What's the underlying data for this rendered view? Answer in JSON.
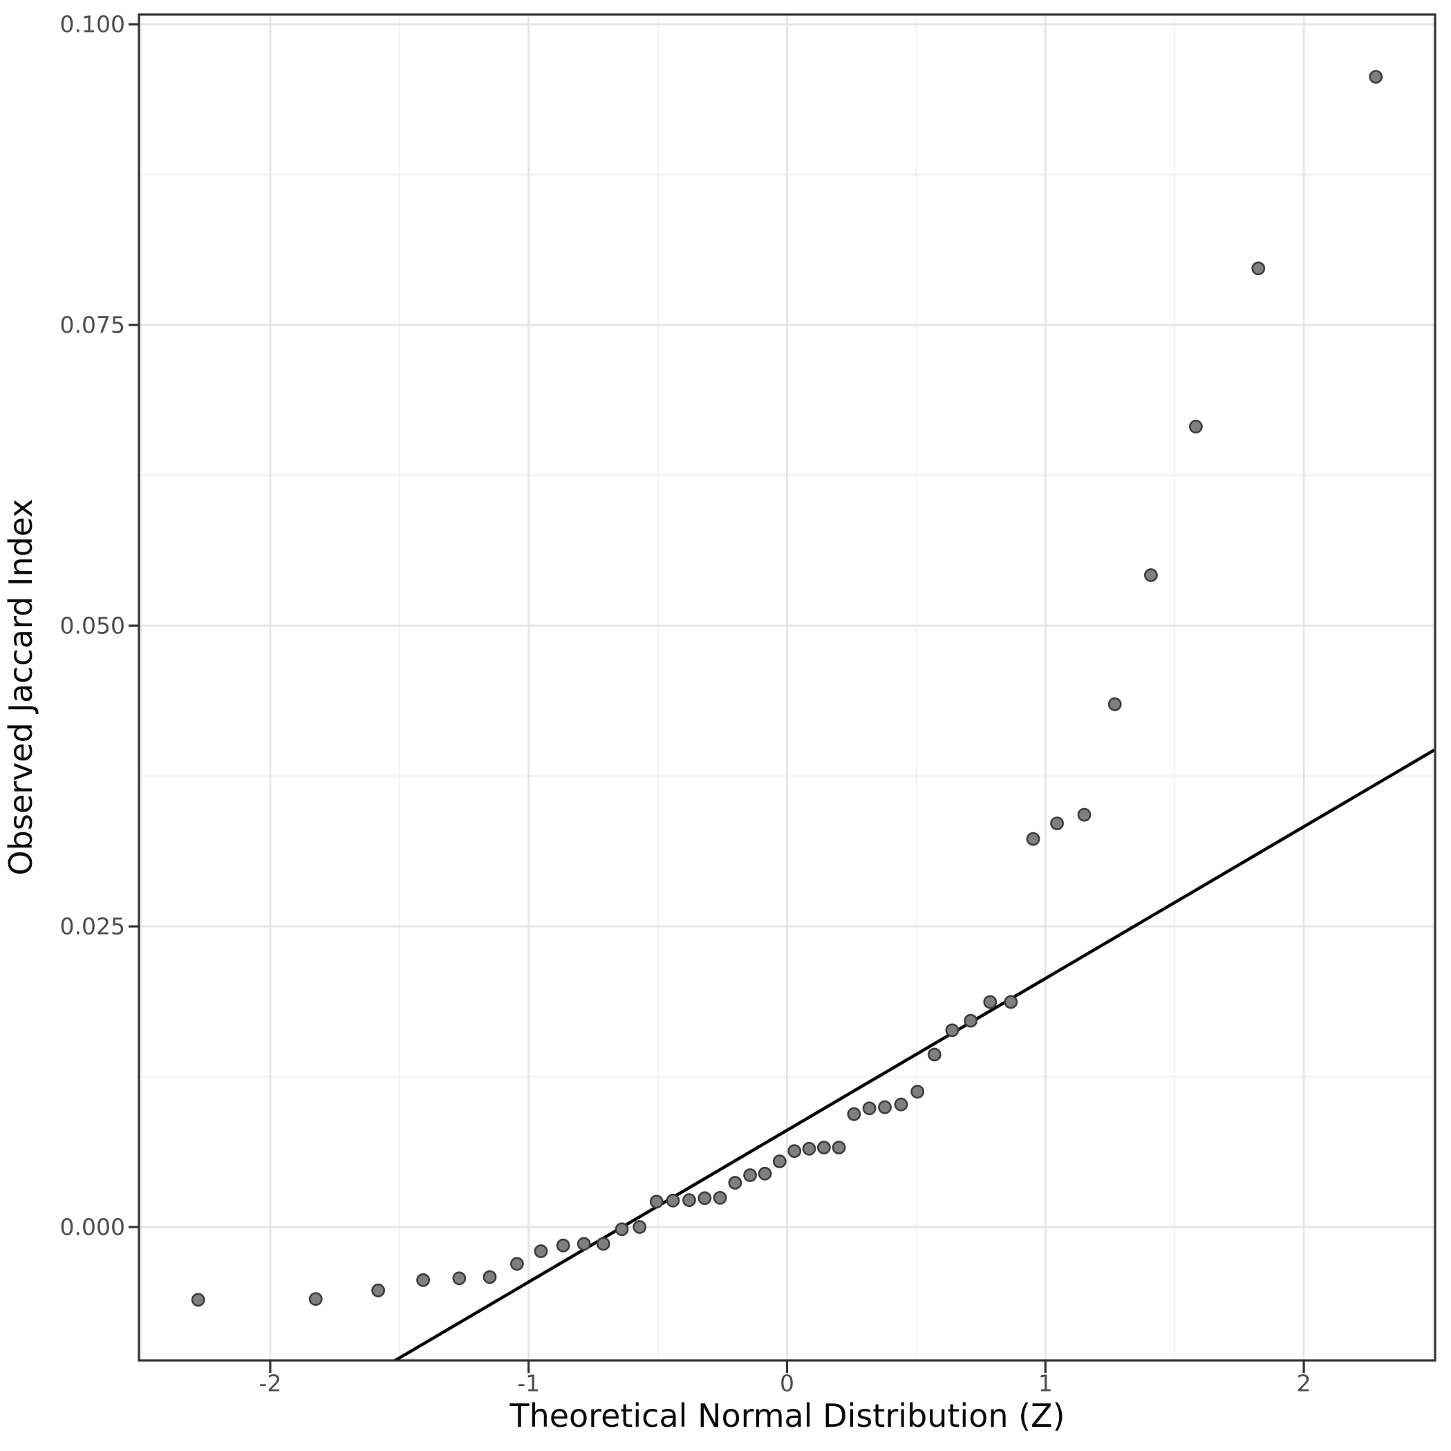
{
  "chart_data": {
    "type": "scatter",
    "title": "",
    "xlabel": "Theoretical Normal Distribution (Z)",
    "ylabel": "Observed Jaccard Index",
    "xlim": [
      -2.508,
      2.508
    ],
    "ylim": [
      -0.01109,
      0.10081
    ],
    "x_ticks": {
      "values": [
        -2,
        -1,
        0,
        1,
        2
      ],
      "labels": [
        "-2",
        "-1",
        "0",
        "1",
        "2"
      ]
    },
    "y_ticks": {
      "values": [
        0,
        0.025,
        0.05,
        0.075,
        0.1
      ],
      "labels": [
        "0.000",
        "0.025",
        "0.050",
        "0.075",
        "0.100"
      ]
    },
    "x_minor_gridlines": [
      -2.5,
      -1.5,
      -0.5,
      0.5,
      1.5,
      2.5
    ],
    "y_minor_gridlines": [
      0.0125,
      0.0375,
      0.0625,
      0.0875
    ],
    "grid": "on",
    "legend": "none",
    "reference_line": {
      "slope": 0.01262,
      "intercept": 0.00805
    },
    "series": [
      {
        "name": "qq-points",
        "points": [
          [
            -2.2788,
            -0.00605
          ],
          [
            -1.824,
            -0.00598
          ],
          [
            -1.5821,
            -0.00527
          ],
          [
            -1.4082,
            -0.00441
          ],
          [
            -1.2687,
            -0.00427
          ],
          [
            -1.1503,
            -0.00416
          ],
          [
            -1.045,
            -0.00306
          ],
          [
            -0.9524,
            -0.00201
          ],
          [
            -0.8663,
            -0.00153
          ],
          [
            -0.7861,
            -0.0014
          ],
          [
            -0.7107,
            -0.0014
          ],
          [
            -0.6392,
            -0.00019
          ],
          [
            -0.5707,
            0.0
          ],
          [
            -0.5049,
            0.00211
          ],
          [
            -0.4413,
            0.0022
          ],
          [
            -0.3786,
            0.00224
          ],
          [
            -0.3186,
            0.0024
          ],
          [
            -0.2593,
            0.00243
          ],
          [
            -0.2008,
            0.00368
          ],
          [
            -0.1429,
            0.00431
          ],
          [
            -0.0856,
            0.00444
          ],
          [
            -0.0285,
            0.00546
          ],
          [
            0.0285,
            0.00632
          ],
          [
            0.0856,
            0.00651
          ],
          [
            0.1429,
            0.00661
          ],
          [
            0.2008,
            0.00661
          ],
          [
            0.2593,
            0.00939
          ],
          [
            0.3186,
            0.00987
          ],
          [
            0.3786,
            0.00996
          ],
          [
            0.4413,
            0.01019
          ],
          [
            0.5049,
            0.01125
          ],
          [
            0.5707,
            0.01434
          ],
          [
            0.6392,
            0.01636
          ],
          [
            0.7107,
            0.01715
          ],
          [
            0.7861,
            0.01871
          ],
          [
            0.8663,
            0.01871
          ],
          [
            0.9524,
            0.03227
          ],
          [
            1.045,
            0.03356
          ],
          [
            1.1503,
            0.03428
          ],
          [
            1.2687,
            0.04347
          ],
          [
            1.4082,
            0.0542
          ],
          [
            1.5821,
            0.06655
          ],
          [
            1.824,
            0.0797
          ],
          [
            2.2788,
            0.09563
          ]
        ]
      }
    ],
    "style": {
      "background": "#ffffff",
      "point_fill": "#7f7f7f",
      "point_stroke": "#3d3d3d",
      "reference_line_color": "#000000",
      "grid_major_color": "#e4e4e4",
      "grid_minor_color": "#eeeeee",
      "panel_border_color": "#333333",
      "tick_color": "#333333",
      "tick_label_color": "#4d4d4d",
      "axis_title_color": "#0a0a0a"
    }
  }
}
